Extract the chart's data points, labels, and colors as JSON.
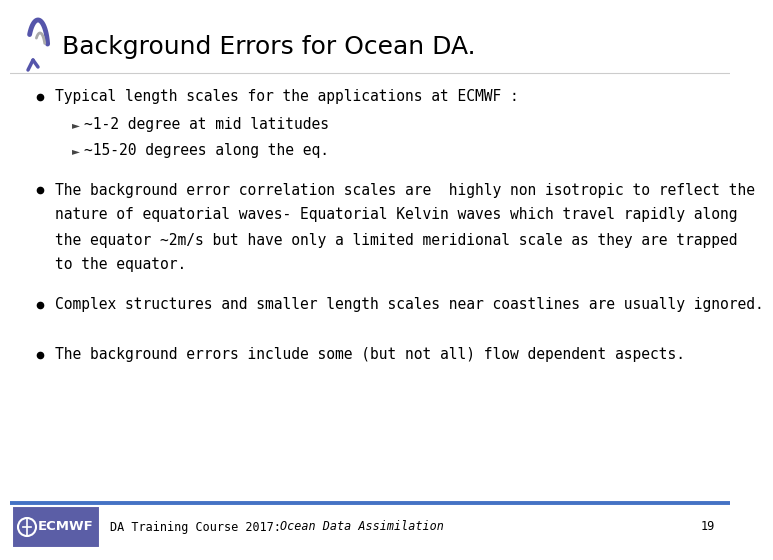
{
  "title": "Background Errors for Ocean DA.",
  "title_fontsize": 18,
  "title_color": "#000000",
  "background_color": "#ffffff",
  "bullet_color": "#000000",
  "bullet_fontsize": 10.5,
  "sub_bullet_fontsize": 10.5,
  "footer_text_regular": "DA Training Course 2017: ",
  "footer_text_italic": "Ocean Data Assimilation",
  "footer_page": "19",
  "footer_fontsize": 8.5,
  "footer_line_color": "#4472c4",
  "ecmwf_box_color": "#5b5ea6",
  "bullet1_text": "Typical length scales for the applications at ECMWF :",
  "bullet1_sub1": "~1-2 degree at mid latitudes",
  "bullet1_sub2": "~15-20 degrees along the eq.",
  "bullet2_line1": "The background error correlation scales are  highly non isotropic to reflect the",
  "bullet2_line2": "nature of equatorial waves- Equatorial Kelvin waves which travel rapidly along",
  "bullet2_line3": "the equator ~2m/s but have only a limited meridional scale as they are trapped",
  "bullet2_line4": "to the equator.",
  "bullet3_text": "Complex structures and smaller length scales near coastlines are usually ignored.",
  "bullet4_text": "The background errors include some (but not all) flow dependent aspects."
}
